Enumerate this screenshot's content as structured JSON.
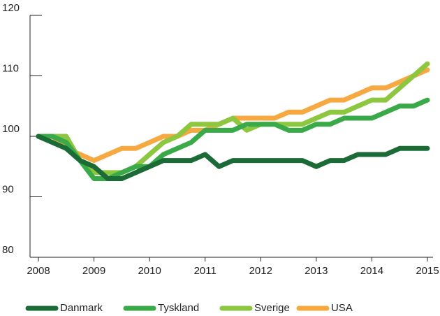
{
  "chart_data": {
    "type": "line",
    "x": [
      2008,
      2008.25,
      2008.5,
      2008.75,
      2009,
      2009.25,
      2009.5,
      2009.75,
      2010,
      2010.25,
      2010.5,
      2010.75,
      2011,
      2011.25,
      2011.5,
      2011.75,
      2012,
      2012.25,
      2012.5,
      2012.75,
      2013,
      2013.25,
      2013.5,
      2013.75,
      2014,
      2014.25,
      2014.5,
      2014.75,
      2015
    ],
    "series": [
      {
        "name": "Danmark",
        "color": "#1a6b35",
        "values": [
          100,
          99,
          98,
          96,
          95,
          93,
          93,
          94,
          95,
          96,
          96,
          96,
          97,
          95,
          96,
          96,
          96,
          96,
          96,
          96,
          95,
          96,
          96,
          97,
          97,
          97,
          98,
          98,
          98
        ]
      },
      {
        "name": "Tyskland",
        "color": "#3aaa48",
        "values": [
          100,
          100,
          99,
          96,
          93,
          93,
          94,
          95,
          95,
          97,
          98,
          99,
          101,
          101,
          101,
          102,
          102,
          102,
          101,
          101,
          102,
          102,
          103,
          103,
          103,
          104,
          105,
          105,
          106
        ]
      },
      {
        "name": "Sverige",
        "color": "#8dc63f",
        "values": [
          100,
          100,
          100,
          96,
          94,
          94,
          94,
          95,
          97,
          99,
          100,
          102,
          102,
          102,
          103,
          101,
          102,
          102,
          102,
          102,
          103,
          104,
          104,
          105,
          106,
          106,
          108,
          110,
          112
        ]
      },
      {
        "name": "USA",
        "color": "#f7a941",
        "values": [
          100,
          100,
          98,
          97,
          96,
          97,
          98,
          98,
          99,
          100,
          100,
          101,
          101,
          102,
          103,
          103,
          103,
          103,
          104,
          104,
          105,
          106,
          106,
          107,
          108,
          108,
          109,
          110,
          111
        ]
      }
    ],
    "xlim": [
      2008,
      2015
    ],
    "xticks": [
      2008,
      2009,
      2010,
      2011,
      2012,
      2013,
      2014,
      2015
    ],
    "ylim": [
      80,
      120
    ],
    "yticks": [
      80,
      90,
      100,
      110,
      120
    ],
    "legend": "bottom"
  }
}
